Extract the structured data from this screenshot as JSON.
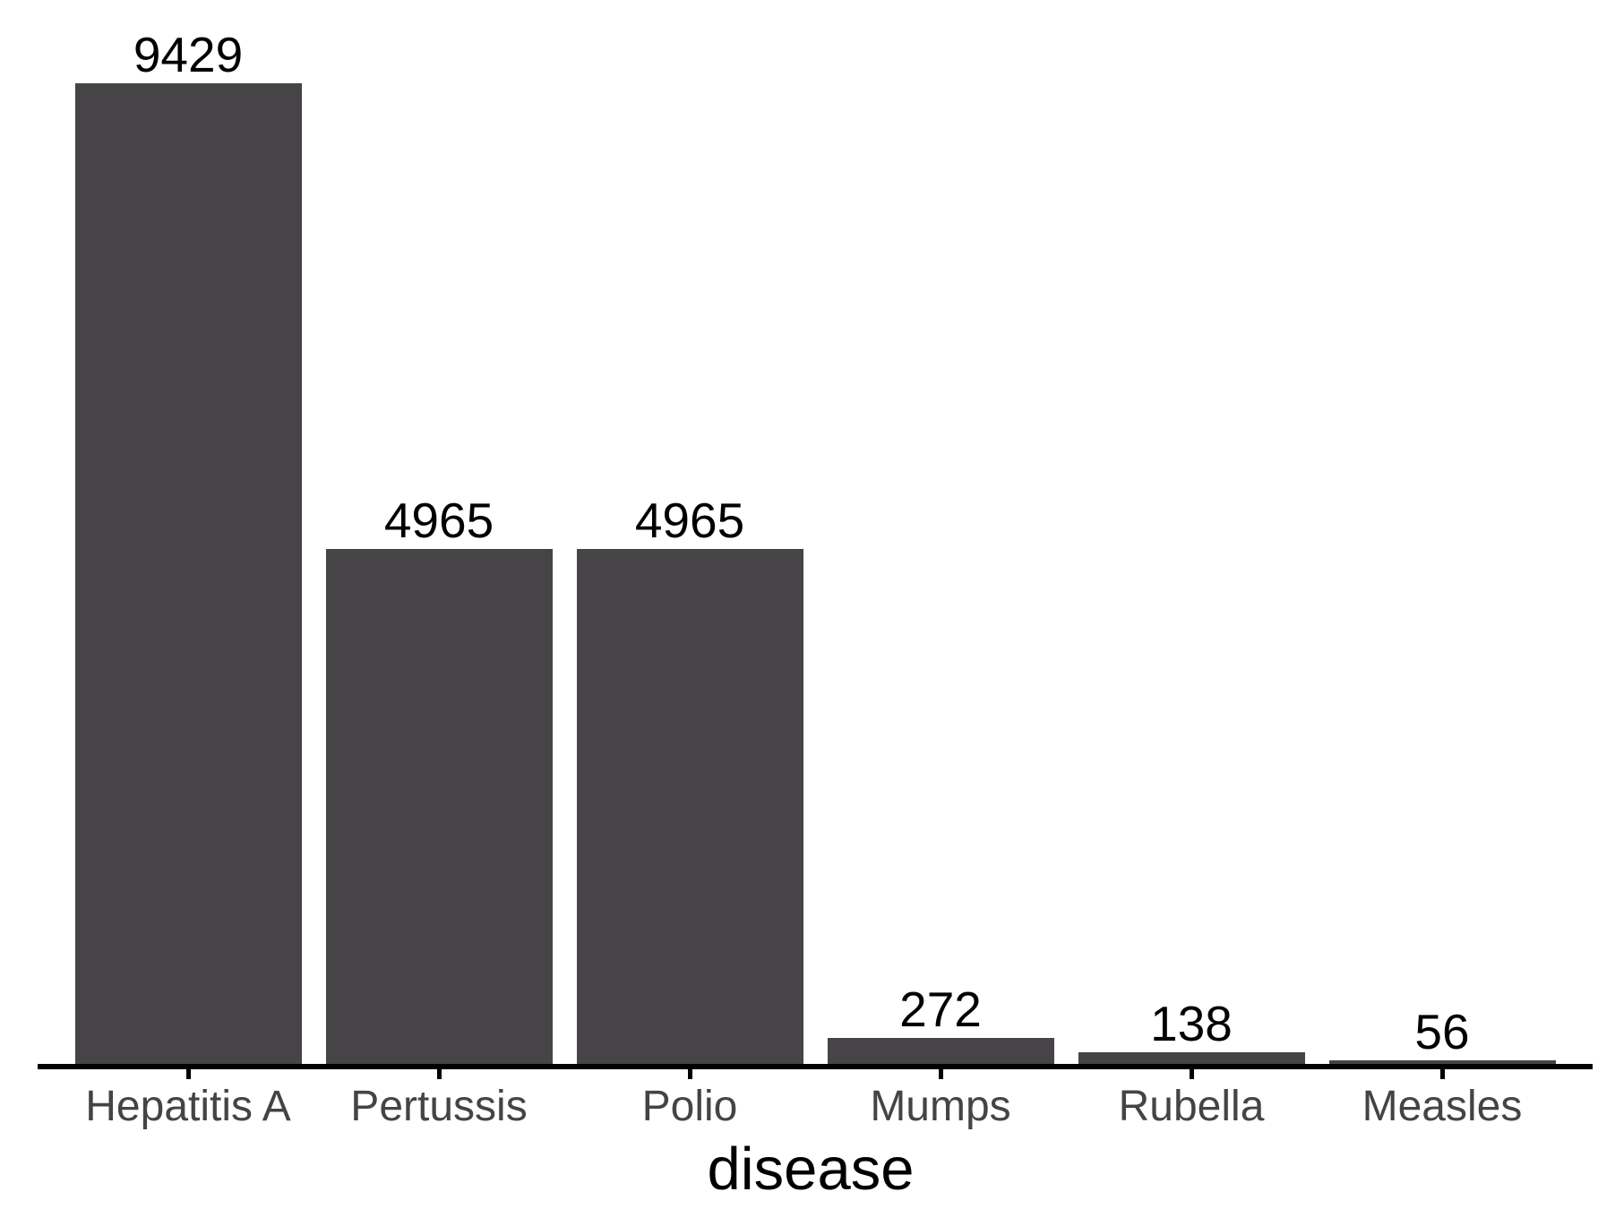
{
  "chart_data": {
    "type": "bar",
    "categories": [
      "Hepatitis A",
      "Pertussis",
      "Polio",
      "Mumps",
      "Rubella",
      "Measles"
    ],
    "values": [
      9429,
      4965,
      4965,
      272,
      138,
      56
    ],
    "value_labels": [
      "9429",
      "4965",
      "4965",
      "272",
      "138",
      "56"
    ],
    "title": "",
    "xlabel": "disease",
    "ylabel": "",
    "ylim": [
      0,
      9429
    ],
    "grid": false,
    "legend": false,
    "y_axis_shown": false,
    "value_labels_shown": true,
    "colors": {
      "bar_fill": "#464446",
      "value_label": "#000000",
      "axis_text": "#444444",
      "axis_title": "#000000",
      "axis_line": "#000000",
      "background": "#ffffff"
    }
  }
}
